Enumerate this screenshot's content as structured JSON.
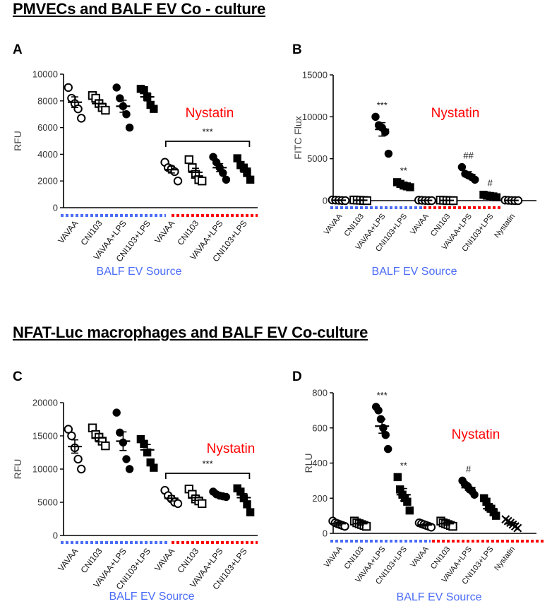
{
  "section_titles": {
    "top": "PMVECs and  BALF EV Co - culture",
    "bottom": "NFAT-Luc macrophages and BALF EV Co-culture"
  },
  "colors": {
    "axis": "#000000",
    "tick_text": "#333333",
    "nystatin": "#ff0000",
    "source_label": "#4a6cf7",
    "blue_dash": "#4a6cf7",
    "red_dash": "#ff0000"
  },
  "chart_data": [
    {
      "panel": "A",
      "type": "scatter",
      "ylabel": "RFU",
      "ylim": [
        0,
        10000
      ],
      "yticks": [
        0,
        2000,
        4000,
        6000,
        8000,
        10000
      ],
      "categories": [
        "VAVAA",
        "CNI103",
        "VAVAA+LPS",
        "CNI103+LPS",
        "VAVAA",
        "CNI103",
        "VAVAA+LPS",
        "CNI103+LPS"
      ],
      "markers": [
        "circle-open",
        "square-open",
        "circle-filled",
        "square-filled",
        "circle-open",
        "square-open",
        "circle-filled",
        "square-filled"
      ],
      "points": [
        [
          9000,
          8200,
          7800,
          7400,
          6700
        ],
        [
          8400,
          8200,
          7800,
          7500,
          7300
        ],
        [
          9000,
          8200,
          7600,
          7000,
          6000
        ],
        [
          8900,
          8800,
          8300,
          7700,
          7400
        ],
        [
          3400,
          3000,
          2900,
          2700,
          2000
        ],
        [
          3600,
          3000,
          2500,
          2100,
          2000
        ],
        [
          3800,
          3400,
          3000,
          2600,
          2100
        ],
        [
          3700,
          3200,
          3000,
          2600,
          2100
        ]
      ],
      "means": [
        7900,
        7800,
        7600,
        8300,
        2850,
        2650,
        3000,
        2950
      ],
      "sems": [
        400,
        250,
        450,
        300,
        250,
        300,
        300,
        300
      ],
      "significance": [
        {
          "from": 4,
          "to": 7,
          "label": "***"
        }
      ],
      "group_label": "Nystatin",
      "source_label": "BALF  EV  Source",
      "blue_groups": [
        0,
        4
      ],
      "red_groups": [
        4,
        8
      ]
    },
    {
      "panel": "B",
      "type": "scatter",
      "ylabel": "FITC Flux",
      "ylim": [
        0,
        15000
      ],
      "yticks": [
        0,
        5000,
        10000,
        15000
      ],
      "categories": [
        "VAVAA",
        "CNI103",
        "VAVAA+LPS",
        "CNI103+LPS",
        "VAVAA",
        "CNI103",
        "VAVAA+LPS",
        "CNI103+LPS",
        "Nystatin"
      ],
      "markers": [
        "circle-open",
        "square-open",
        "circle-filled",
        "square-filled",
        "circle-open",
        "square-open",
        "circle-filled",
        "square-filled",
        "circle-open"
      ],
      "points": [
        [
          80,
          60,
          40,
          20,
          0
        ],
        [
          80,
          60,
          40,
          20,
          0
        ],
        [
          10000,
          9000,
          8700,
          8200,
          5600
        ],
        [
          2200,
          2000,
          1800,
          1700,
          1600
        ],
        [
          60,
          40,
          20,
          0,
          0
        ],
        [
          60,
          40,
          20,
          0,
          0
        ],
        [
          4000,
          3200,
          3000,
          2800,
          2500
        ],
        [
          700,
          600,
          550,
          500,
          400
        ],
        [
          60,
          40,
          20,
          0,
          0
        ]
      ],
      "means": [
        40,
        40,
        8500,
        1860,
        24,
        24,
        3100,
        550,
        24
      ],
      "sems": [
        30,
        30,
        800,
        150,
        20,
        20,
        350,
        60,
        20
      ],
      "bar_labels": [
        "",
        "",
        "***",
        "**",
        "",
        "",
        "##",
        "#",
        ""
      ],
      "group_label": "Nystatin",
      "source_label": "BALF  EV  Source",
      "blue_groups": [
        0,
        4
      ],
      "red_groups": [
        4,
        8
      ]
    },
    {
      "panel": "C",
      "type": "scatter",
      "ylabel": "RFU",
      "ylim": [
        0,
        20000
      ],
      "yticks": [
        0,
        5000,
        10000,
        15000,
        20000
      ],
      "categories": [
        "VAVAA",
        "CNI103",
        "VAVAA+LPS",
        "CNI103+LPS",
        "VAVAA",
        "CNI103",
        "VAVAA+LPS",
        "CNI103+LPS"
      ],
      "markers": [
        "circle-open",
        "square-open",
        "circle-filled",
        "square-filled",
        "circle-open",
        "square-open",
        "circle-filled",
        "square-filled"
      ],
      "points": [
        [
          16000,
          15000,
          13200,
          11500,
          10000
        ],
        [
          16200,
          15200,
          14800,
          14200,
          13500
        ],
        [
          18500,
          15500,
          14000,
          11500,
          10000
        ],
        [
          14500,
          13800,
          12500,
          11000,
          10200
        ],
        [
          6800,
          6000,
          5500,
          5000,
          4800
        ],
        [
          7000,
          6200,
          5500,
          5200,
          4800
        ],
        [
          6600,
          6200,
          6000,
          5900,
          5800
        ],
        [
          7100,
          6600,
          5600,
          4700,
          3500
        ]
      ],
      "means": [
        13400,
        14700,
        14200,
        12900,
        5600,
        5700,
        6100,
        5700
      ],
      "sems": [
        1000,
        600,
        1400,
        800,
        400,
        400,
        200,
        600
      ],
      "significance": [
        {
          "from": 4,
          "to": 7,
          "label": "***"
        }
      ],
      "group_label": "Nystatin",
      "source_label": "BALF  EV  Source",
      "blue_groups": [
        0,
        4
      ],
      "red_groups": [
        4,
        8
      ]
    },
    {
      "panel": "D",
      "type": "scatter",
      "ylabel": "RLU",
      "ylim": [
        0,
        800
      ],
      "yticks": [
        0,
        200,
        400,
        600,
        800
      ],
      "categories": [
        "VAVAA",
        "CNI103",
        "VAVAA+LPS",
        "CNI103+LPS",
        "VAVAA",
        "CNI103",
        "VAVAA+LPS",
        "CNI103+LPS",
        "Nystatin"
      ],
      "markers": [
        "circle-open",
        "square-open",
        "circle-filled",
        "square-filled",
        "circle-open",
        "square-open",
        "circle-filled",
        "square-filled",
        "x"
      ],
      "points": [
        [
          70,
          60,
          55,
          50,
          45,
          40
        ],
        [
          70,
          60,
          55,
          50,
          45,
          40
        ],
        [
          720,
          700,
          650,
          600,
          560,
          480
        ],
        [
          320,
          250,
          220,
          200,
          180,
          130
        ],
        [
          60,
          55,
          50,
          45,
          40,
          35
        ],
        [
          70,
          60,
          55,
          50,
          45,
          40
        ],
        [
          300,
          280,
          270,
          250,
          240,
          220
        ],
        [
          200,
          180,
          150,
          140,
          120,
          100
        ],
        [
          80,
          70,
          60,
          50,
          40,
          30
        ]
      ],
      "means": [
        55,
        55,
        610,
        220,
        48,
        55,
        260,
        140,
        55
      ],
      "sems": [
        8,
        8,
        40,
        35,
        6,
        8,
        15,
        18,
        8
      ],
      "bar_labels": [
        "",
        "",
        "***",
        "**",
        "",
        "",
        "#",
        "",
        ""
      ],
      "group_label": "Nystatin",
      "source_label": "BALF  EV  Source",
      "blue_groups": [
        0,
        4
      ],
      "red_groups": [
        4,
        9
      ]
    }
  ]
}
